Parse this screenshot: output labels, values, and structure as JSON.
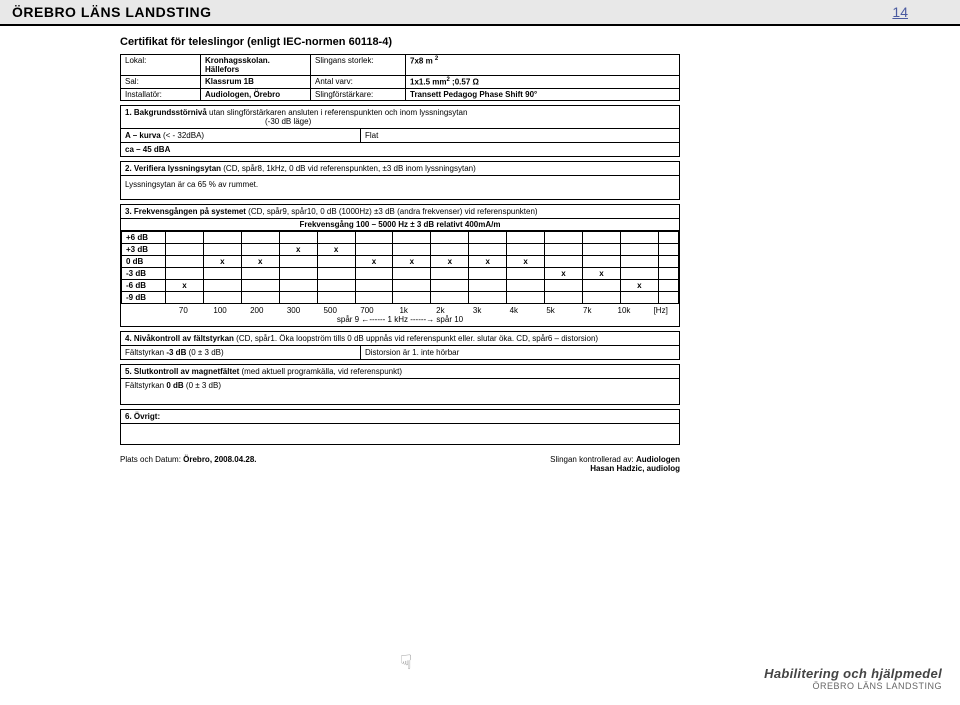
{
  "header": {
    "org": "ÖREBRO LÄNS LANDSTING",
    "page": "14"
  },
  "title": "Certifikat för teleslingor (enligt IEC-normen 60118-4)",
  "info": {
    "lokal_lbl": "Lokal:",
    "lokal": "Kronhagsskolan. Hällefors",
    "storlek_lbl": "Slingans storlek:",
    "storlek": "7x8 m",
    "storlek_sup": "2",
    "sal_lbl": "Sal:",
    "sal": "Klassrum 1B",
    "varv_lbl": "Antal varv:",
    "varv": "1x1.5 mm",
    "varv_sup": "2",
    "varv_tail": " ;0.57 Ω",
    "inst_lbl": "Installatör:",
    "inst": "Audiologen, Örebro",
    "forst_lbl": "Slingförstärkare:",
    "forst": "Transett Pedagog Phase Shift 90°"
  },
  "s1": {
    "head_b": "1. Bakgrundsstörnivå",
    "head_rest": " utan slingförstärkaren ansluten i referenspunkten och inom lyssningsytan",
    "head_sub": "(-30 dB läge)",
    "a_lbl": "A – kurva   (< - 32dBA)",
    "a_val": "Flat",
    "ca": "ca – 45 dBA"
  },
  "s2": {
    "head_b": "2. Verifiera lyssningsytan",
    "head_rest": " (CD, spår8, 1kHz, 0 dB vid referenspunkten, ±3 dB inom lyssningsytan)",
    "body": "Lyssningsytan är ca 65 %  av rummet."
  },
  "s3": {
    "head_b": "3. Frekvensgången på systemet",
    "head_rest": " (CD, spår9, spår10, 0 dB (1000Hz) ±3 dB (andra frekvenser) vid referenspunkten)",
    "sub": "Frekvensgång 100 – 5000 Hz ± 3 dB relativt 400mA/m",
    "rows": [
      "+6 dB",
      "+3 dB",
      "0 dB",
      "-3 dB",
      "-6 dB",
      "-9 dB"
    ],
    "grid": {
      "cols": 14,
      "marks": [
        {
          "r": 1,
          "c": 4,
          "v": "x"
        },
        {
          "r": 1,
          "c": 5,
          "v": "x"
        },
        {
          "r": 2,
          "c": 2,
          "v": "x"
        },
        {
          "r": 2,
          "c": 3,
          "v": "x"
        },
        {
          "r": 2,
          "c": 6,
          "v": "x"
        },
        {
          "r": 2,
          "c": 7,
          "v": "x"
        },
        {
          "r": 2,
          "c": 8,
          "v": "x"
        },
        {
          "r": 2,
          "c": 9,
          "v": "x"
        },
        {
          "r": 2,
          "c": 10,
          "v": "x"
        },
        {
          "r": 3,
          "c": 11,
          "v": "x"
        },
        {
          "r": 3,
          "c": 12,
          "v": "x"
        },
        {
          "r": 4,
          "c": 1,
          "v": "x"
        },
        {
          "r": 4,
          "c": 13,
          "v": "x"
        }
      ]
    },
    "axis": [
      "70",
      "100",
      "200",
      "300",
      "500",
      "700",
      "1k",
      "2k",
      "3k",
      "4k",
      "5k",
      "7k",
      "10k",
      "[Hz]"
    ],
    "axis_sub": "spår 9 ←------   1 kHz   ------→ spår 10"
  },
  "s4": {
    "head_b": "4. Nivåkontroll av fältstyrkan",
    "head_rest": " (CD, spår1. Öka loopström tills 0 dB uppnås vid referenspunkt eller. slutar öka. CD, spår6 – distorsion)",
    "left": "Fältstyrkan -3 dB (0 ± 3 dB)",
    "right": "Distorsion är   1. inte hörbar"
  },
  "s5": {
    "head_b": "5. Slutkontroll av magnetfältet",
    "head_rest": " (med aktuell programkälla, vid referenspunkt)",
    "body": "Fältstyrkan 0 dB  (0 ± 3 dB)"
  },
  "s6": {
    "head_b": "6. Övrigt:"
  },
  "footer": {
    "left": "Plats och Datum: Örebro, 2008.04.28.",
    "right_a": "Slingan kontrollerad av: ",
    "right_b": "Audiologen",
    "right_c": "Hasan Hadzic, audiolog"
  },
  "logo": {
    "l1": "Habilitering och hjälpmedel",
    "l2": "ÖREBRO LÄNS LANDSTING"
  }
}
